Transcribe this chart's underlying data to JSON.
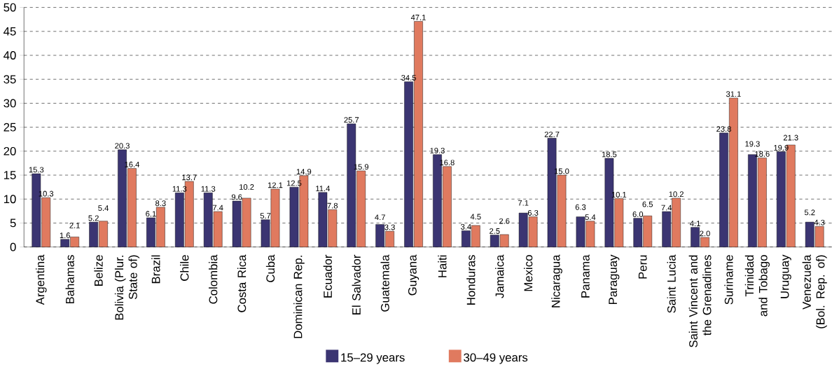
{
  "chart_data": {
    "type": "bar",
    "categories": [
      "Argentina",
      "Bahamas",
      "Belize",
      "Bolivia (Plur. State of)",
      "Brazil",
      "Chile",
      "Colombia",
      "Costa Rica",
      "Cuba",
      "Dominican Rep.",
      "Ecuador",
      "El Salvador",
      "Guatemala",
      "Guyana",
      "Haiti",
      "Honduras",
      "Jamaica",
      "Mexico",
      "Nicaragua",
      "Panama",
      "Paraguay",
      "Peru",
      "Saint Lucia",
      "Saint Vincent and the Grenadines",
      "Suriname",
      "Trinidad and Tobago",
      "Uruguay",
      "Venezuela (Bol. Rep. of)"
    ],
    "series": [
      {
        "name": "15–29 years",
        "color": "#3b3572",
        "values": [
          15.3,
          1.6,
          5.2,
          20.3,
          6.1,
          11.3,
          11.3,
          9.6,
          5.7,
          12.5,
          11.4,
          25.7,
          4.7,
          34.5,
          19.3,
          3.4,
          2.5,
          7.1,
          22.7,
          6.3,
          18.5,
          6.0,
          7.4,
          4.1,
          23.8,
          19.3,
          19.9,
          5.2
        ],
        "value_labels": [
          "15.3",
          "1.6",
          "5.2",
          "20.3",
          "6.1",
          "11.3",
          "11.3",
          "9.6",
          "5.7",
          "12.5",
          "11.4",
          "25.7",
          "4.7",
          "34.5",
          "19.3",
          "3.4",
          "2.5",
          "7.1",
          "22.7",
          "6.3",
          "18.5",
          "6.0",
          "7.4",
          "4.1",
          "23.8",
          "19.3",
          "19.9",
          "5.2"
        ]
      },
      {
        "name": "30–49 years",
        "color": "#e07a5f",
        "values": [
          10.3,
          2.1,
          5.4,
          16.4,
          8.3,
          13.7,
          7.4,
          10.2,
          12.1,
          14.9,
          7.8,
          15.9,
          3.3,
          47.1,
          16.8,
          4.5,
          2.6,
          6.3,
          15.0,
          5.4,
          10.1,
          6.5,
          10.2,
          2.0,
          31.1,
          18.6,
          21.3,
          4.3
        ],
        "value_labels": [
          "10.3",
          "2.1",
          "5.4",
          "16.4",
          "8.3",
          "13.7",
          "7.4",
          "10.2",
          "12.1",
          "14.9",
          "7.8",
          "15.9",
          "3.3",
          "47.1",
          "16.8",
          "4.5",
          "2.6",
          "6.3",
          "15.0",
          "5.4",
          "10.1",
          "6.5",
          "10.2",
          "2.0",
          "31.1",
          "18.6",
          "21.3",
          "4.3"
        ]
      }
    ],
    "ylim": [
      0,
      50
    ],
    "yticks": [
      0,
      5,
      10,
      15,
      20,
      25,
      30,
      35,
      40,
      45,
      50
    ],
    "grid": "y",
    "legend": "bottom"
  }
}
